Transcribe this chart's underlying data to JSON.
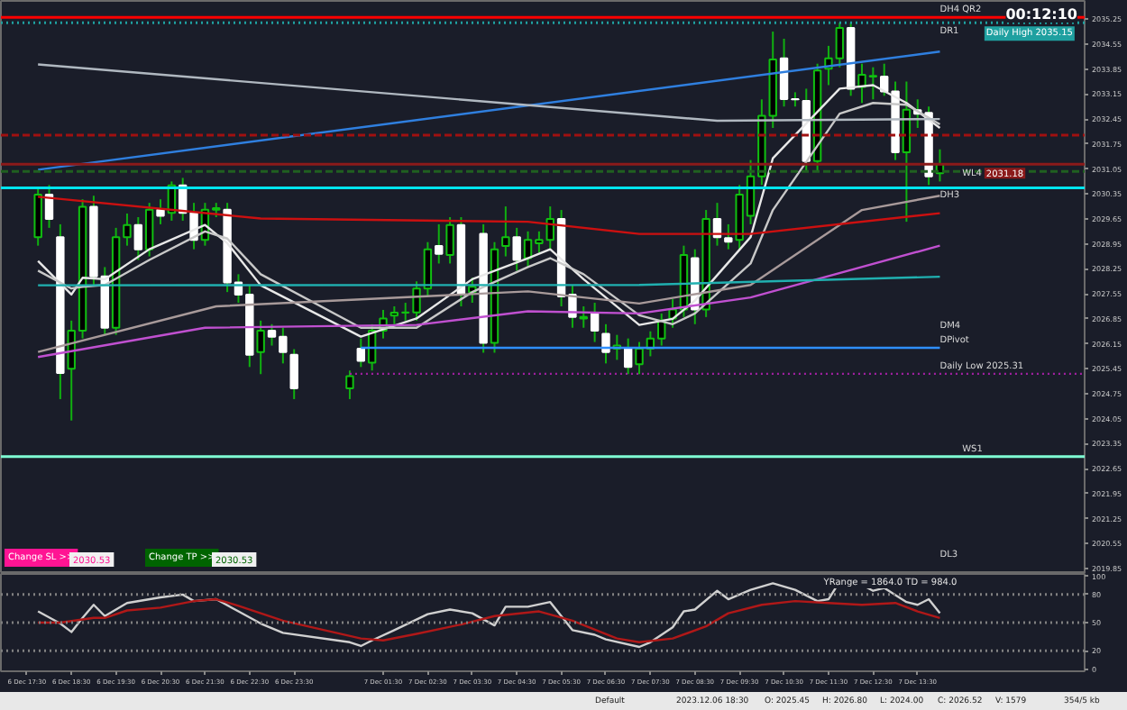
{
  "chart_data": [
    {
      "type": "candlestick",
      "x": [
        "2023-12-06T17:45",
        "2023-12-06T18:00",
        "2023-12-06T18:15",
        "2023-12-06T18:30",
        "2023-12-06T18:45",
        "2023-12-06T19:00",
        "2023-12-06T19:15",
        "2023-12-06T19:30",
        "2023-12-06T19:45",
        "2023-12-06T20:00",
        "2023-12-06T20:15",
        "2023-12-06T20:30",
        "2023-12-06T20:45",
        "2023-12-06T21:00",
        "2023-12-06T21:15",
        "2023-12-06T21:30",
        "2023-12-06T21:45",
        "2023-12-06T22:00",
        "2023-12-06T22:15",
        "2023-12-06T22:30",
        "2023-12-06T22:45",
        "2023-12-06T23:00",
        "2023-12-06T23:15",
        "2023-12-06T23:30",
        "2023-12-07T00:45",
        "2023-12-07T01:00",
        "2023-12-07T01:15",
        "2023-12-07T01:30",
        "2023-12-07T01:45",
        "2023-12-07T02:00",
        "2023-12-07T02:15",
        "2023-12-07T02:30",
        "2023-12-07T02:45",
        "2023-12-07T03:00",
        "2023-12-07T03:15",
        "2023-12-07T03:30",
        "2023-12-07T03:45",
        "2023-12-07T04:00",
        "2023-12-07T04:15",
        "2023-12-07T04:30",
        "2023-12-07T04:45",
        "2023-12-07T05:00",
        "2023-12-07T05:15",
        "2023-12-07T05:30",
        "2023-12-07T05:45",
        "2023-12-07T06:00",
        "2023-12-07T06:15",
        "2023-12-07T06:30",
        "2023-12-07T06:45",
        "2023-12-07T07:00",
        "2023-12-07T07:15",
        "2023-12-07T07:30",
        "2023-12-07T07:45",
        "2023-12-07T08:00",
        "2023-12-07T08:15",
        "2023-12-07T08:30",
        "2023-12-07T08:45",
        "2023-12-07T09:00",
        "2023-12-07T09:15",
        "2023-12-07T09:30",
        "2023-12-07T09:45",
        "2023-12-07T10:00",
        "2023-12-07T10:15",
        "2023-12-07T10:30",
        "2023-12-07T10:45",
        "2023-12-07T11:00",
        "2023-12-07T11:15",
        "2023-12-07T11:30",
        "2023-12-07T11:45",
        "2023-12-07T12:00",
        "2023-12-07T12:15",
        "2023-12-07T12:30",
        "2023-12-07T12:45",
        "2023-12-07T13:00",
        "2023-12-07T13:15",
        "2023-12-07T13:30",
        "2023-12-07T13:45",
        "2023-12-07T14:00"
      ],
      "ohlc": [
        [
          2029.14,
          2030.5,
          2028.9,
          2030.33
        ],
        [
          2030.33,
          2030.6,
          2029.4,
          2029.65
        ],
        [
          2029.14,
          2029.5,
          2024.6,
          2025.33
        ],
        [
          2025.45,
          2026.8,
          2024.0,
          2026.52
        ],
        [
          2026.52,
          2030.2,
          2026.3,
          2029.99
        ],
        [
          2029.99,
          2030.3,
          2027.8,
          2028.04
        ],
        [
          2028.04,
          2028.3,
          2026.4,
          2026.6
        ],
        [
          2026.6,
          2029.4,
          2026.4,
          2029.14
        ],
        [
          2029.14,
          2029.8,
          2028.9,
          2029.48
        ],
        [
          2029.48,
          2029.7,
          2028.5,
          2028.8
        ],
        [
          2028.8,
          2030.1,
          2028.6,
          2029.91
        ],
        [
          2029.91,
          2030.2,
          2029.5,
          2029.74
        ],
        [
          2029.82,
          2030.7,
          2029.6,
          2030.59
        ],
        [
          2030.59,
          2030.8,
          2029.6,
          2029.82
        ],
        [
          2029.82,
          2030.1,
          2028.8,
          2029.06
        ],
        [
          2029.06,
          2030.1,
          2028.9,
          2029.91
        ],
        [
          2029.91,
          2030.1,
          2029.7,
          2029.95
        ],
        [
          2029.91,
          2030.1,
          2027.6,
          2027.87
        ],
        [
          2027.87,
          2028.1,
          2027.3,
          2027.53
        ],
        [
          2027.53,
          2027.8,
          2025.5,
          2025.84
        ],
        [
          2025.92,
          2026.8,
          2025.3,
          2026.52
        ],
        [
          2026.52,
          2026.7,
          2026.1,
          2026.35
        ],
        [
          2026.35,
          2026.6,
          2025.6,
          2025.92
        ],
        [
          2025.84,
          2026.0,
          2024.6,
          2024.9
        ],
        [
          2024.9,
          2025.4,
          2024.6,
          2025.24
        ],
        [
          2026.01,
          2026.3,
          2025.5,
          2025.67
        ],
        [
          2025.62,
          2026.7,
          2025.4,
          2026.52
        ],
        [
          2026.52,
          2027.1,
          2026.3,
          2026.86
        ],
        [
          2026.94,
          2027.2,
          2026.7,
          2027.02
        ],
        [
          2027.02,
          2027.3,
          2026.8,
          2027.03
        ],
        [
          2027.03,
          2027.9,
          2026.8,
          2027.7
        ],
        [
          2027.7,
          2029.0,
          2027.5,
          2028.8
        ],
        [
          2028.89,
          2029.5,
          2028.4,
          2028.67
        ],
        [
          2028.64,
          2029.7,
          2028.4,
          2029.48
        ],
        [
          2029.48,
          2029.7,
          2027.2,
          2027.53
        ],
        [
          2027.6,
          2028.0,
          2027.3,
          2027.75
        ],
        [
          2029.23,
          2029.5,
          2025.9,
          2026.18
        ],
        [
          2026.18,
          2029.0,
          2025.9,
          2028.8
        ],
        [
          2028.89,
          2030.0,
          2028.6,
          2029.14
        ],
        [
          2029.14,
          2029.4,
          2028.2,
          2028.5
        ],
        [
          2028.55,
          2029.3,
          2028.3,
          2029.06
        ],
        [
          2028.97,
          2029.3,
          2028.7,
          2029.06
        ],
        [
          2029.06,
          2030.0,
          2028.8,
          2029.65
        ],
        [
          2029.65,
          2029.9,
          2027.2,
          2027.48
        ],
        [
          2027.53,
          2027.8,
          2026.6,
          2026.9
        ],
        [
          2026.86,
          2027.2,
          2026.6,
          2026.9
        ],
        [
          2027.02,
          2027.3,
          2026.2,
          2026.52
        ],
        [
          2026.43,
          2026.7,
          2025.6,
          2025.92
        ],
        [
          2026.01,
          2026.4,
          2025.7,
          2026.1
        ],
        [
          2026.01,
          2026.3,
          2025.3,
          2025.5
        ],
        [
          2025.58,
          2026.2,
          2025.3,
          2026.01
        ],
        [
          2026.01,
          2026.5,
          2025.8,
          2026.3
        ],
        [
          2026.3,
          2027.0,
          2026.1,
          2026.8
        ],
        [
          2026.86,
          2027.4,
          2026.6,
          2027.11
        ],
        [
          2027.11,
          2028.9,
          2026.9,
          2028.64
        ],
        [
          2028.55,
          2028.8,
          2026.7,
          2027.11
        ],
        [
          2027.11,
          2029.9,
          2026.9,
          2029.65
        ],
        [
          2029.65,
          2030.1,
          2028.9,
          2029.14
        ],
        [
          2029.11,
          2029.5,
          2028.8,
          2029.01
        ],
        [
          2029.06,
          2030.6,
          2028.8,
          2030.33
        ],
        [
          2029.74,
          2031.3,
          2029.5,
          2030.84
        ],
        [
          2030.84,
          2033.0,
          2030.6,
          2032.54
        ],
        [
          2032.54,
          2034.9,
          2032.2,
          2034.12
        ],
        [
          2034.15,
          2034.7,
          2032.8,
          2033.01
        ],
        [
          2033.01,
          2033.2,
          2032.8,
          2033.0
        ],
        [
          2032.96,
          2033.3,
          2031.0,
          2031.27
        ],
        [
          2031.27,
          2034.0,
          2031.0,
          2033.81
        ],
        [
          2033.86,
          2034.5,
          2033.4,
          2034.15
        ],
        [
          2034.15,
          2035.15,
          2033.9,
          2035.0
        ],
        [
          2035.0,
          2035.15,
          2033.1,
          2033.3
        ],
        [
          2033.35,
          2034.0,
          2032.9,
          2033.69
        ],
        [
          2033.64,
          2033.9,
          2033.0,
          2033.66
        ],
        [
          2033.64,
          2034.0,
          2033.1,
          2033.22
        ],
        [
          2033.22,
          2033.5,
          2031.3,
          2031.52
        ],
        [
          2031.52,
          2033.5,
          2029.57,
          2032.71
        ],
        [
          2032.7,
          2033.0,
          2032.2,
          2032.6
        ],
        [
          2032.62,
          2032.8,
          2030.6,
          2030.84
        ],
        [
          2030.93,
          2031.6,
          2030.7,
          2031.18
        ]
      ],
      "series": [
        {
          "type": "line",
          "color": "#e8e8e8",
          "x": [
            "2023-12-06T17:45",
            "2023-12-06T18:30",
            "2023-12-06T18:45",
            "2023-12-06T19:15",
            "2023-12-06T20:15",
            "2023-12-06T21:30",
            "2023-12-06T22:00",
            "2023-12-06T22:45",
            "2023-12-07T01:00",
            "2023-12-07T02:15",
            "2023-12-07T03:30",
            "2023-12-07T04:45",
            "2023-12-07T05:15",
            "2023-12-07T06:00",
            "2023-12-07T07:15",
            "2023-12-07T08:00",
            "2023-12-07T08:30",
            "2023-12-07T09:45",
            "2023-12-07T10:15",
            "2023-12-07T11:45",
            "2023-12-07T12:30",
            "2023-12-07T13:15",
            "2023-12-07T14:00"
          ],
          "values": [
            2028.47,
            2027.53,
            2028.0,
            2027.96,
            2028.8,
            2029.48,
            2028.97,
            2027.79,
            2026.35,
            2026.86,
            2027.96,
            2028.55,
            2028.8,
            2027.96,
            2026.68,
            2026.85,
            2027.36,
            2029.14,
            2031.35,
            2033.3,
            2033.4,
            2032.9,
            2032.2
          ]
        },
        {
          "type": "line",
          "color": "#c8c8c8",
          "x": [
            "2023-12-06T17:45",
            "2023-12-06T18:30",
            "2023-12-06T18:45",
            "2023-12-06T19:15",
            "2023-12-06T20:15",
            "2023-12-06T21:30",
            "2023-12-06T22:00",
            "2023-12-06T22:45",
            "2023-12-07T01:00",
            "2023-12-07T02:15",
            "2023-12-07T03:30",
            "2023-12-07T04:45",
            "2023-12-07T05:15",
            "2023-12-07T06:00",
            "2023-12-07T07:15",
            "2023-12-07T08:00",
            "2023-12-07T08:30",
            "2023-12-07T09:45",
            "2023-12-07T10:15",
            "2023-12-07T11:45",
            "2023-12-07T12:30",
            "2023-12-07T13:15",
            "2023-12-07T14:00"
          ],
          "values": [
            2028.2,
            2027.7,
            2027.75,
            2027.8,
            2028.5,
            2029.3,
            2029.1,
            2028.1,
            2026.6,
            2026.6,
            2027.6,
            2028.3,
            2028.55,
            2028.1,
            2026.95,
            2026.7,
            2027.0,
            2028.4,
            2029.9,
            2032.6,
            2032.9,
            2032.85,
            2032.3
          ]
        },
        {
          "type": "line",
          "color": "#a89a9a",
          "x": [
            "2023-12-06T17:45",
            "2023-12-06T21:45",
            "2023-12-07T04:45",
            "2023-12-07T07:15",
            "2023-12-07T09:45",
            "2023-12-07T12:15",
            "2023-12-07T14:00"
          ],
          "values": [
            2025.92,
            2027.2,
            2027.62,
            2027.28,
            2027.8,
            2029.9,
            2030.3
          ]
        },
        {
          "type": "line",
          "color": "#cc1010",
          "x": [
            "2023-12-06T17:45",
            "2023-12-06T22:45",
            "2023-12-07T04:45",
            "2023-12-07T07:15",
            "2023-12-07T09:45",
            "2023-12-07T14:00"
          ],
          "values": [
            2030.27,
            2029.66,
            2029.57,
            2029.23,
            2029.23,
            2029.81
          ]
        },
        {
          "type": "line",
          "color": "#c050d0",
          "x": [
            "2023-12-06T17:45",
            "2023-12-06T21:30",
            "2023-12-07T02:15",
            "2023-12-07T04:45",
            "2023-12-07T07:15",
            "2023-12-07T09:45",
            "2023-12-07T14:00"
          ],
          "values": [
            2025.78,
            2026.6,
            2026.68,
            2027.06,
            2027.0,
            2027.45,
            2028.9
          ]
        },
        {
          "type": "line",
          "color": "#20b0b0",
          "x": [
            "2023-12-06T17:45",
            "2023-12-07T07:15",
            "2023-12-07T14:00"
          ],
          "values": [
            2027.79,
            2027.8,
            2028.03
          ]
        },
        {
          "type": "line",
          "color": "#2f7fdf",
          "x": [
            "2023-12-06T17:45",
            "2023-12-07T14:00"
          ],
          "values": [
            2031.03,
            2034.34
          ]
        },
        {
          "type": "line",
          "color": "#b0b8c0",
          "x": [
            "2023-12-06T17:45",
            "2023-12-07T09:00",
            "2023-12-07T14:00"
          ],
          "values": [
            2033.98,
            2032.4,
            2032.45
          ]
        },
        {
          "type": "line",
          "color": "#2f8fff",
          "x": [
            "2023-12-07T01:00",
            "2023-12-07T14:00"
          ],
          "values": [
            2026.04,
            2026.04
          ]
        },
        {
          "type": "line",
          "color": "#a020a0",
          "line_style": "dotted",
          "x": [
            "2023-12-07T00:45",
            "2023-12-07T17:15"
          ],
          "values": [
            2025.31,
            2025.31
          ]
        }
      ],
      "ref_lines": [
        {
          "axis": "y",
          "value": 2035.3,
          "color": "#ff0000",
          "line_style": "solid"
        },
        {
          "axis": "y",
          "value": 2035.15,
          "label": "Daily High 2035.15",
          "color": "#1fa0a0",
          "line_style": "dotted"
        },
        {
          "axis": "y",
          "value": 2032.0,
          "color": "#a01010",
          "line_style": "dashed"
        },
        {
          "axis": "y",
          "value": 2031.18,
          "label": "2031.18",
          "color": "#8b1a1a",
          "line_style": "solid"
        },
        {
          "axis": "y",
          "value": 2030.98,
          "color": "#206020",
          "line_style": "dashed"
        },
        {
          "axis": "y",
          "value": 2030.52,
          "color": "#00e5ee",
          "line_style": "solid"
        },
        {
          "axis": "y",
          "value": 2022.99,
          "color": "#7fffd4",
          "line_style": "solid"
        }
      ],
      "annotations": [
        "00:12:10",
        "Change SL >>",
        "2030.53",
        "Change TP >>",
        "2030.53",
        "DR1",
        "DM4",
        "DL3",
        {
          "text": "DH4",
          "x": "2023-12-07T14:00",
          "y": 2035.3
        },
        {
          "text": "QR2",
          "x": "2023-12-07T14:30",
          "y": 2035.3
        },
        {
          "text": "WL4",
          "x": "2023-12-07T14:30",
          "y": 2030.7
        },
        {
          "text": "DH3",
          "x": "2023-12-07T14:00",
          "y": 2030.1
        },
        {
          "text": "DPivot",
          "x": "2023-12-07T14:00",
          "y": 2026.04
        },
        {
          "text": "Daily Low 2025.31",
          "x": "2023-12-07T14:00",
          "y": 2025.31
        },
        {
          "text": "WS1",
          "x": "2023-12-07T14:30",
          "y": 2022.99
        }
      ],
      "xlim": [
        "2023-12-06T16:55",
        "2023-12-07T17:15"
      ],
      "ylim": [
        2019.7,
        2035.76
      ],
      "yticks": [
        2019.85,
        2020.55,
        2021.25,
        2021.95,
        2022.65,
        2023.35,
        2024.05,
        2024.75,
        2025.45,
        2026.15,
        2026.85,
        2027.55,
        2028.25,
        2028.95,
        2029.65,
        2030.35,
        2031.05,
        2031.75,
        2032.45,
        2033.15,
        2033.85,
        2034.55,
        2035.25
      ],
      "tick_labels": "y"
    },
    {
      "type": "line",
      "series": [
        {
          "color": "#d0d0d0",
          "x": [
            "2023-12-06T17:45",
            "2023-12-06T18:15",
            "2023-12-06T18:30",
            "2023-12-06T18:45",
            "2023-12-06T19:00",
            "2023-12-06T19:15",
            "2023-12-06T19:45",
            "2023-12-06T20:30",
            "2023-12-06T21:00",
            "2023-12-06T21:15",
            "2023-12-06T21:45",
            "2023-12-06T22:15",
            "2023-12-06T22:45",
            "2023-12-06T23:15",
            "2023-12-07T00:45",
            "2023-12-07T01:00",
            "2023-12-07T01:15",
            "2023-12-07T01:45",
            "2023-12-07T02:30",
            "2023-12-07T03:00",
            "2023-12-07T03:30",
            "2023-12-07T04:00",
            "2023-12-07T04:15",
            "2023-12-07T04:45",
            "2023-12-07T05:15",
            "2023-12-07T05:45",
            "2023-12-07T06:15",
            "2023-12-07T06:30",
            "2023-12-07T07:15",
            "2023-12-07T07:30",
            "2023-12-07T08:00",
            "2023-12-07T08:15",
            "2023-12-07T08:30",
            "2023-12-07T09:00",
            "2023-12-07T09:15",
            "2023-12-07T09:45",
            "2023-12-07T10:15",
            "2023-12-07T10:45",
            "2023-12-07T11:15",
            "2023-12-07T11:30",
            "2023-12-07T11:45",
            "2023-12-07T12:00",
            "2023-12-07T12:30",
            "2023-12-07T12:45",
            "2023-12-07T13:15",
            "2023-12-07T13:30",
            "2023-12-07T13:45",
            "2023-12-07T14:00"
          ],
          "values": [
            62,
            49,
            40,
            55,
            69,
            57,
            71,
            77,
            80,
            73,
            75,
            62,
            49,
            39,
            29,
            25,
            31,
            42,
            59,
            64,
            60,
            47,
            67,
            67,
            72,
            42,
            37,
            32,
            24,
            29,
            45,
            62,
            64,
            84,
            75,
            85,
            92,
            85,
            73,
            75,
            94,
            97,
            84,
            87,
            72,
            69,
            75,
            60
          ]
        },
        {
          "color": "#b01818",
          "x": [
            "2023-12-06T17:45",
            "2023-12-06T18:15",
            "2023-12-06T19:00",
            "2023-12-06T19:15",
            "2023-12-06T19:45",
            "2023-12-06T20:30",
            "2023-12-06T21:15",
            "2023-12-06T21:45",
            "2023-12-06T22:15",
            "2023-12-06T23:15",
            "2023-12-07T01:00",
            "2023-12-07T01:30",
            "2023-12-07T02:15",
            "2023-12-07T03:15",
            "2023-12-07T04:00",
            "2023-12-07T05:00",
            "2023-12-07T05:45",
            "2023-12-07T06:45",
            "2023-12-07T07:15",
            "2023-12-07T08:00",
            "2023-12-07T08:45",
            "2023-12-07T09:15",
            "2023-12-07T10:00",
            "2023-12-07T10:45",
            "2023-12-07T11:30",
            "2023-12-07T12:15",
            "2023-12-07T13:00",
            "2023-12-07T13:30",
            "2023-12-07T14:00"
          ],
          "values": [
            50,
            50,
            55,
            55,
            63,
            66,
            73,
            75,
            68,
            52,
            33,
            31,
            38,
            48,
            57,
            62,
            52,
            33,
            29,
            33,
            46,
            60,
            69,
            73,
            71,
            69,
            71,
            62,
            55
          ]
        }
      ],
      "ref_lines": [
        {
          "axis": "y",
          "value": 20,
          "color": "#808080",
          "line_style": "dotted"
        },
        {
          "axis": "y",
          "value": 50,
          "color": "#808080",
          "line_style": "dotted"
        },
        {
          "axis": "y",
          "value": 80,
          "color": "#808080",
          "line_style": "dotted"
        }
      ],
      "annotations": [
        "YRange = 1864.0    TD = 984.0",
        "Default",
        "2023.12.06 18:30",
        "O: 2025.45",
        "H: 2026.80",
        "L: 2024.00",
        "C: 2026.52",
        "V: 1579",
        "354/5 kb"
      ],
      "xlim": [
        "2023-12-06T16:55",
        "2023-12-07T17:15"
      ],
      "ylim": [
        -2,
        102
      ],
      "xticks": [
        {
          "value": "2023-12-06T17:30",
          "label": "6 Dec 17:30"
        },
        {
          "value": "2023-12-06T18:30",
          "label": "6 Dec 18:30"
        },
        {
          "value": "2023-12-06T19:30",
          "label": "6 Dec 19:30"
        },
        {
          "value": "2023-12-06T20:30",
          "label": "6 Dec 20:30"
        },
        {
          "value": "2023-12-06T21:30",
          "label": "6 Dec 21:30"
        },
        {
          "value": "2023-12-06T22:30",
          "label": "6 Dec 22:30"
        },
        {
          "value": "2023-12-06T23:30",
          "label": "6 Dec 23:30"
        },
        {
          "value": "2023-12-07T01:30",
          "label": "7 Dec 01:30"
        },
        {
          "value": "2023-12-07T02:30",
          "label": "7 Dec 02:30"
        },
        {
          "value": "2023-12-07T03:30",
          "label": "7 Dec 03:30"
        },
        {
          "value": "2023-12-07T04:30",
          "label": "7 Dec 04:30"
        },
        {
          "value": "2023-12-07T05:30",
          "label": "7 Dec 05:30"
        },
        {
          "value": "2023-12-07T06:30",
          "label": "7 Dec 06:30"
        },
        {
          "value": "2023-12-07T07:30",
          "label": "7 Dec 07:30"
        },
        {
          "value": "2023-12-07T08:30",
          "label": "7 Dec 08:30"
        },
        {
          "value": "2023-12-07T09:30",
          "label": "7 Dec 09:30"
        },
        {
          "value": "2023-12-07T10:30",
          "label": "7 Dec 10:30"
        },
        {
          "value": "2023-12-07T11:30",
          "label": "7 Dec 11:30"
        },
        {
          "value": "2023-12-07T12:30",
          "label": "7 Dec 12:30"
        },
        {
          "value": "2023-12-07T13:30",
          "label": "7 Dec 13:30"
        }
      ],
      "yticks": [
        0,
        20,
        50,
        80,
        100
      ]
    }
  ]
}
